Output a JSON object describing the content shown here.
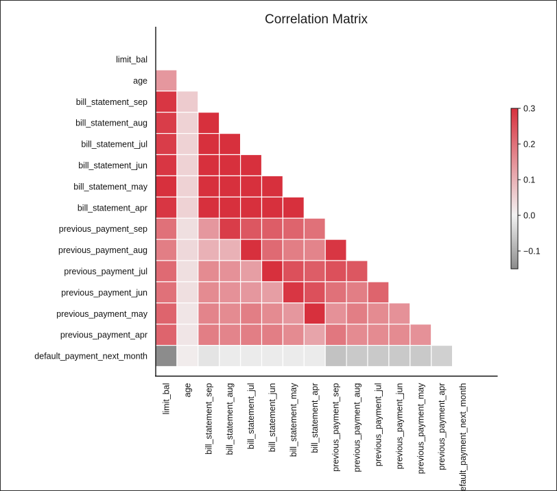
{
  "chart_data": {
    "type": "heatmap",
    "title": "Correlation Matrix",
    "mask": "upper-triangle-and-diagonal",
    "variables": [
      "limit_bal",
      "age",
      "bill_statement_sep",
      "bill_statement_aug",
      "bill_statement_jul",
      "bill_statement_jun",
      "bill_statement_may",
      "bill_statement_apr",
      "previous_payment_sep",
      "previous_payment_aug",
      "previous_payment_jul",
      "previous_payment_jun",
      "previous_payment_may",
      "previous_payment_apr",
      "default_payment_next_month"
    ],
    "values": [
      [],
      [
        0.14
      ],
      [
        0.29,
        0.06
      ],
      [
        0.28,
        0.05,
        0.95
      ],
      [
        0.28,
        0.05,
        0.89,
        0.93
      ],
      [
        0.29,
        0.05,
        0.86,
        0.89,
        0.92
      ],
      [
        0.3,
        0.05,
        0.83,
        0.86,
        0.88,
        0.94
      ],
      [
        0.29,
        0.05,
        0.8,
        0.83,
        0.85,
        0.9,
        0.95
      ],
      [
        0.2,
        0.03,
        0.14,
        0.28,
        0.24,
        0.23,
        0.22,
        0.2
      ],
      [
        0.18,
        0.04,
        0.1,
        0.1,
        0.32,
        0.21,
        0.18,
        0.17,
        0.29
      ],
      [
        0.21,
        0.03,
        0.16,
        0.15,
        0.13,
        0.3,
        0.25,
        0.23,
        0.25,
        0.24
      ],
      [
        0.2,
        0.03,
        0.16,
        0.15,
        0.14,
        0.13,
        0.29,
        0.25,
        0.2,
        0.18,
        0.22
      ],
      [
        0.22,
        0.02,
        0.17,
        0.16,
        0.18,
        0.16,
        0.14,
        0.31,
        0.15,
        0.18,
        0.16,
        0.15
      ],
      [
        0.22,
        0.02,
        0.18,
        0.17,
        0.18,
        0.18,
        0.16,
        0.12,
        0.19,
        0.16,
        0.16,
        0.16,
        0.15
      ],
      [
        -0.15,
        0.01,
        -0.02,
        -0.01,
        -0.01,
        -0.01,
        -0.01,
        -0.01,
        -0.07,
        -0.06,
        -0.06,
        -0.06,
        -0.06,
        -0.05
      ]
    ],
    "colorbar": {
      "min": -0.15,
      "max": 0.3,
      "ticks": [
        0.3,
        0.2,
        0.1,
        0.0,
        -0.1
      ],
      "tick_labels": [
        "0.3",
        "0.2",
        "0.1",
        "0.0",
        "−0.1"
      ],
      "low_color": "#8c8c8c",
      "mid_color": "#f2f2f2",
      "high_color": "#d7303d"
    },
    "grid_line_color": "#ffffff"
  }
}
